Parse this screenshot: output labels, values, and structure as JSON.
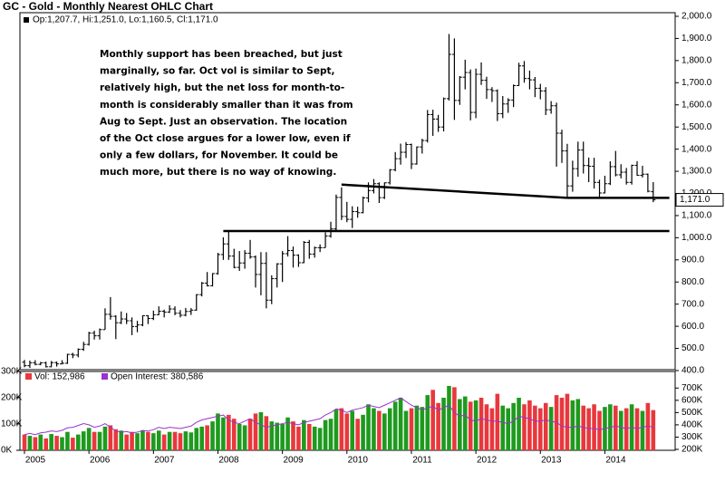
{
  "chart_data": [
    {
      "type": "ohlc",
      "title": "GC - Gold - Monthly Nearest OHLC Chart",
      "legend_text": "Op:1,207.7, Hi:1,251.0, Lo:1,160.5, Cl:1,171.0",
      "color": "#000000",
      "categories": [
        "2005",
        null,
        null,
        null,
        null,
        null,
        null,
        null,
        null,
        null,
        null,
        null,
        "2006",
        null,
        null,
        null,
        null,
        null,
        null,
        null,
        null,
        null,
        null,
        null,
        "2007",
        null,
        null,
        null,
        null,
        null,
        null,
        null,
        null,
        null,
        null,
        null,
        "2008",
        null,
        null,
        null,
        null,
        null,
        null,
        null,
        null,
        null,
        null,
        null,
        "2009",
        null,
        null,
        null,
        null,
        null,
        null,
        null,
        null,
        null,
        null,
        null,
        "2010",
        null,
        null,
        null,
        null,
        null,
        null,
        null,
        null,
        null,
        null,
        null,
        "2011",
        null,
        null,
        null,
        null,
        null,
        null,
        null,
        null,
        null,
        null,
        null,
        "2012",
        null,
        null,
        null,
        null,
        null,
        null,
        null,
        null,
        null,
        null,
        null,
        "2013",
        null,
        null,
        null,
        null,
        null,
        null,
        null,
        null,
        null,
        null,
        null,
        "2014",
        null,
        null,
        null,
        null,
        null,
        null,
        null,
        null,
        null
      ],
      "open": [
        438,
        422,
        435,
        428,
        435,
        417,
        436,
        430,
        433,
        473,
        470,
        496,
        518,
        569,
        557,
        585,
        654,
        645,
        616,
        633,
        625,
        599,
        606,
        648,
        635,
        652,
        668,
        664,
        678,
        659,
        650,
        667,
        673,
        743,
        795,
        783,
        838,
        924,
        972,
        917,
        866,
        886,
        930,
        913,
        834,
        884,
        718,
        815,
        882,
        928,
        942,
        921,
        887,
        979,
        926,
        955,
        955,
        1008,
        1040,
        1182,
        1096,
        1083,
        1118,
        1113,
        1180,
        1213,
        1244,
        1181,
        1248,
        1307,
        1357,
        1386,
        1421,
        1333,
        1410,
        1439,
        1556,
        1536,
        1500,
        1628,
        1828,
        1620,
        1725,
        1746,
        1566,
        1738,
        1711,
        1669,
        1664,
        1560,
        1604,
        1622,
        1687,
        1776,
        1719,
        1713,
        1675,
        1663,
        1578,
        1596,
        1472,
        1392,
        1234,
        1312,
        1396,
        1326,
        1323,
        1250,
        1202,
        1244,
        1321,
        1284,
        1296,
        1250,
        1327,
        1282,
        1287,
        1207.7
      ],
      "high": [
        448,
        445,
        447,
        439,
        440,
        443,
        441,
        447,
        476,
        480,
        500,
        530,
        575,
        580,
        590,
        681,
        732,
        650,
        667,
        660,
        640,
        625,
        650,
        650,
        671,
        690,
        675,
        695,
        690,
        673,
        683,
        682,
        745,
        800,
        845,
        840,
        932,
        1002,
        1033,
        950,
        940,
        944,
        990,
        920,
        935,
        935,
        830,
        885,
        940,
        1007,
        960,
        925,
        985,
        990,
        960,
        970,
        1024,
        1072,
        1195,
        1227,
        1162,
        1142,
        1140,
        1186,
        1250,
        1265,
        1250,
        1250,
        1310,
        1387,
        1425,
        1432,
        1425,
        1412,
        1447,
        1577,
        1578,
        1555,
        1633,
        1920,
        1900,
        1730,
        1804,
        1760,
        1764,
        1792,
        1727,
        1680,
        1670,
        1640,
        1630,
        1692,
        1790,
        1798,
        1755,
        1726,
        1695,
        1680,
        1617,
        1610,
        1488,
        1424,
        1348,
        1434,
        1434,
        1362,
        1361,
        1262,
        1280,
        1345,
        1392,
        1332,
        1315,
        1330,
        1346,
        1325,
        1290,
        1251
      ],
      "low": [
        415,
        412,
        424,
        424,
        414,
        415,
        418,
        428,
        430,
        456,
        460,
        489,
        513,
        540,
        540,
        585,
        630,
        542,
        610,
        610,
        560,
        573,
        600,
        610,
        628,
        650,
        640,
        660,
        650,
        640,
        645,
        651,
        670,
        735,
        780,
        780,
        833,
        900,
        900,
        862,
        850,
        860,
        905,
        775,
        740,
        681,
        700,
        775,
        800,
        915,
        865,
        868,
        885,
        905,
        910,
        935,
        955,
        1000,
        1030,
        1080,
        1070,
        1044,
        1090,
        1110,
        1160,
        1200,
        1157,
        1175,
        1240,
        1300,
        1330,
        1360,
        1310,
        1330,
        1380,
        1430,
        1460,
        1478,
        1480,
        1620,
        1532,
        1600,
        1670,
        1530,
        1540,
        1690,
        1627,
        1613,
        1527,
        1540,
        1564,
        1590,
        1686,
        1700,
        1670,
        1635,
        1625,
        1554,
        1560,
        1321,
        1338,
        1180,
        1208,
        1275,
        1290,
        1251,
        1222,
        1180,
        1200,
        1238,
        1277,
        1268,
        1240,
        1240,
        1280,
        1272,
        1205,
        1160.5
      ],
      "close": [
        422,
        435,
        428,
        435,
        417,
        436,
        430,
        433,
        473,
        470,
        496,
        518,
        569,
        557,
        585,
        654,
        645,
        616,
        633,
        625,
        599,
        606,
        648,
        635,
        652,
        668,
        664,
        678,
        659,
        650,
        667,
        673,
        743,
        795,
        783,
        838,
        924,
        972,
        917,
        866,
        886,
        930,
        913,
        834,
        884,
        718,
        815,
        882,
        928,
        942,
        921,
        887,
        979,
        926,
        955,
        955,
        1008,
        1040,
        1182,
        1096,
        1083,
        1118,
        1113,
        1180,
        1213,
        1244,
        1181,
        1248,
        1307,
        1357,
        1386,
        1421,
        1333,
        1410,
        1439,
        1556,
        1536,
        1500,
        1628,
        1828,
        1620,
        1725,
        1746,
        1566,
        1738,
        1711,
        1669,
        1664,
        1560,
        1604,
        1622,
        1687,
        1776,
        1719,
        1713,
        1675,
        1663,
        1578,
        1596,
        1472,
        1392,
        1234,
        1312,
        1396,
        1326,
        1323,
        1250,
        1202,
        1244,
        1321,
        1284,
        1296,
        1250,
        1327,
        1282,
        1287,
        1210,
        1171
      ],
      "last_close_label": "1,171.0",
      "ylim": [
        400,
        2000
      ],
      "yticks": [
        {
          "value": 400,
          "label": "400.0"
        },
        {
          "value": 500,
          "label": "500.0"
        },
        {
          "value": 600,
          "label": "600.0"
        },
        {
          "value": 700,
          "label": "700.0"
        },
        {
          "value": 800,
          "label": "800.0"
        },
        {
          "value": 900,
          "label": "900.0"
        },
        {
          "value": 1000,
          "label": "1,000.0"
        },
        {
          "value": 1100,
          "label": "1,100.0"
        },
        {
          "value": 1200,
          "label": "1,200.0"
        },
        {
          "value": 1300,
          "label": "1,300.0"
        },
        {
          "value": 1400,
          "label": "1,400.0"
        },
        {
          "value": 1500,
          "label": "1,500.0"
        },
        {
          "value": 1600,
          "label": "1,600.0"
        },
        {
          "value": 1700,
          "label": "1,700.0"
        },
        {
          "value": 1800,
          "label": "1,800.0"
        },
        {
          "value": 1900,
          "label": "1,900.0"
        },
        {
          "value": 2000,
          "label": "2,000.0"
        }
      ],
      "support_lines": [
        {
          "x": [
            59,
            101
          ],
          "y": [
            1240,
            1180
          ]
        },
        {
          "x": [
            101,
            120
          ],
          "y": [
            1180,
            1180
          ]
        },
        {
          "x": [
            37,
            120
          ],
          "y": [
            1030,
            1030
          ]
        }
      ],
      "annotation": [
        "Monthly support has been breached, but just",
        "marginally, so far.  Oct vol is similar to Sept,",
        "relatively high, but the net loss for month-to-",
        "month is considerably smaller than it was from",
        "Aug to Sept.  Just an observation.  The location",
        "of the Oct close argues for a lower low, even if",
        "only a few dollars, for November.  It could be",
        "much more, but  there is no way of knowing."
      ]
    },
    {
      "type": "volume",
      "up_color": "#1e9a1e",
      "down_color": "#e8383d",
      "series": [
        {
          "name": "Vol: 152,986",
          "color": "#e8383d",
          "values": [
            60000,
            55000,
            50000,
            60000,
            45000,
            62000,
            55000,
            50000,
            70000,
            48000,
            60000,
            72000,
            85000,
            70000,
            70000,
            90000,
            95000,
            80000,
            75000,
            60000,
            70000,
            65000,
            75000,
            70000,
            65000,
            75000,
            60000,
            70000,
            70000,
            65000,
            72000,
            68000,
            85000,
            90000,
            95000,
            110000,
            140000,
            125000,
            135000,
            120000,
            100000,
            95000,
            120000,
            140000,
            145000,
            130000,
            110000,
            105000,
            100000,
            125000,
            110000,
            90000,
            115000,
            100000,
            90000,
            85000,
            115000,
            120000,
            155000,
            160000,
            140000,
            150000,
            120000,
            135000,
            175000,
            160000,
            150000,
            140000,
            160000,
            185000,
            200000,
            150000,
            160000,
            170000,
            165000,
            210000,
            230000,
            180000,
            200000,
            245000,
            240000,
            195000,
            205000,
            185000,
            190000,
            200000,
            175000,
            160000,
            215000,
            170000,
            160000,
            180000,
            200000,
            175000,
            190000,
            170000,
            160000,
            180000,
            165000,
            210000,
            200000,
            215000,
            190000,
            195000,
            170000,
            160000,
            175000,
            150000,
            165000,
            175000,
            170000,
            150000,
            160000,
            175000,
            160000,
            150000,
            180000,
            152986
          ]
        },
        {
          "name": "Open Interest: 380,586",
          "color": "#9933cc",
          "axis": "y2",
          "values": [
            320000,
            330000,
            320000,
            335000,
            340000,
            350000,
            345000,
            355000,
            375000,
            380000,
            395000,
            410000,
            400000,
            380000,
            390000,
            410000,
            380000,
            350000,
            340000,
            345000,
            335000,
            340000,
            355000,
            350000,
            360000,
            380000,
            370000,
            380000,
            375000,
            370000,
            380000,
            390000,
            420000,
            440000,
            450000,
            460000,
            470000,
            480000,
            440000,
            420000,
            410000,
            430000,
            450000,
            420000,
            400000,
            380000,
            390000,
            400000,
            410000,
            420000,
            410000,
            400000,
            420000,
            430000,
            440000,
            450000,
            480000,
            500000,
            530000,
            520000,
            500000,
            520000,
            530000,
            540000,
            560000,
            550000,
            540000,
            560000,
            580000,
            600000,
            620000,
            590000,
            560000,
            540000,
            520000,
            540000,
            550000,
            520000,
            540000,
            560000,
            500000,
            470000,
            480000,
            440000,
            430000,
            450000,
            440000,
            430000,
            430000,
            420000,
            410000,
            430000,
            470000,
            460000,
            450000,
            430000,
            430000,
            440000,
            430000,
            420000,
            390000,
            380000,
            380000,
            390000,
            380000,
            370000,
            370000,
            360000,
            370000,
            380000,
            390000,
            380000,
            370000,
            380000,
            370000,
            380000,
            390000,
            380586
          ]
        }
      ],
      "ylim": [
        0,
        300000
      ],
      "yticks": [
        {
          "value": 0,
          "label": "0K"
        },
        {
          "value": 100000,
          "label": "100K"
        },
        {
          "value": 200000,
          "label": "200K"
        },
        {
          "value": 300000,
          "label": "300K"
        }
      ],
      "y2lim": [
        200000,
        835000
      ],
      "y2ticks": [
        {
          "value": 200000,
          "label": "200K"
        },
        {
          "value": 300000,
          "label": "300K"
        },
        {
          "value": 400000,
          "label": "400K"
        },
        {
          "value": 500000,
          "label": "500K"
        },
        {
          "value": 600000,
          "label": "600K"
        },
        {
          "value": 700000,
          "label": "700K"
        }
      ]
    }
  ]
}
